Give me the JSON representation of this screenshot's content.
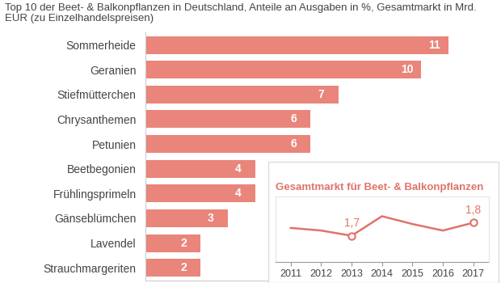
{
  "chart_data": [
    {
      "type": "bar",
      "title": "Top 10 der Beet- & Balkonpflanzen in Deutschland, Anteile an Ausgaben in %, Gesamtmarkt in Mrd. EUR (zu Einzelhandelspreisen)",
      "orientation": "horizontal",
      "categories": [
        "Sommerheide",
        "Geranien",
        "Stiefmütterchen",
        "Chrysanthemen",
        "Petunien",
        "Beetbegonien",
        "Frühlingsprimeln",
        "Gänseblümchen",
        "Lavendel",
        "Strauchmargeriten"
      ],
      "values": [
        11,
        10,
        7,
        6,
        6,
        4,
        4,
        3,
        2,
        2
      ],
      "color": "#e9857b",
      "xlim": [
        0,
        11
      ],
      "xticks": [],
      "data_labels": true,
      "tick_labels": "y",
      "grid": false
    },
    {
      "type": "line",
      "title": "Gesamtmarkt für Beet- & Balkonpflanzen",
      "x": [
        2011,
        2012,
        2013,
        2014,
        2015,
        2016,
        2017
      ],
      "values": [
        1.76,
        1.74,
        1.7,
        1.85,
        1.79,
        1.74,
        1.8
      ],
      "value_labels": [
        null,
        null,
        "1,7",
        null,
        null,
        null,
        "1,8"
      ],
      "color": "#e0736a",
      "xlim": [
        2010.5,
        2017.5
      ],
      "xticks": [
        2011,
        2012,
        2013,
        2014,
        2015,
        2016,
        2017
      ],
      "ylim": [
        1.5,
        2.0
      ],
      "yticks": [],
      "tick_labels": "x",
      "grid": false
    }
  ]
}
